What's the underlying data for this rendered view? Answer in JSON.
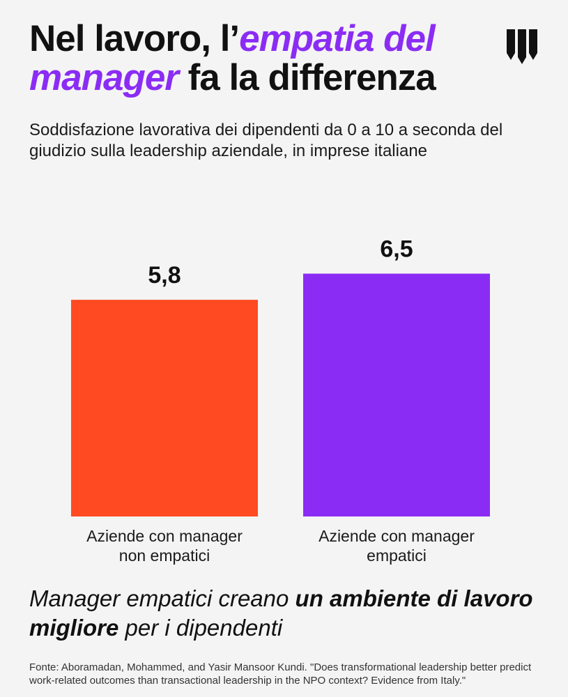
{
  "header": {
    "title_part1": "Nel lavoro, l’",
    "title_accent": "empatia del manager",
    "title_part2": " fa la differenza",
    "subtitle": "Soddisfazione lavorativa dei dipendenti da 0 a 10 a seconda del giudizio sulla leadership aziendale, in imprese italiane",
    "logo_icon": "brand-logo-icon"
  },
  "chart_data": {
    "type": "bar",
    "title": "",
    "xlabel": "",
    "ylabel": "",
    "categories": [
      [
        "Aziende con manager",
        "non empatici"
      ],
      [
        "Aziende con manager",
        "empatici"
      ]
    ],
    "values": [
      5.8,
      6.5
    ],
    "value_labels": [
      "5,8",
      "6,5"
    ],
    "colors": [
      "#ff4a22",
      "#8b2cf5"
    ],
    "grid": false,
    "legend": "none"
  },
  "tagline": {
    "part1": "Manager empatici creano ",
    "strong": "un ambiente di lavoro migliore",
    "part2": " per i dipendenti"
  },
  "source": "Fonte: Aboramadan, Mohammed, and Yasir Mansoor Kundi. \"Does transformational leadership better predict work-related outcomes than transactional leadership in the NPO context? Evidence from Italy.\"",
  "colors": {
    "accent": "#8b2cf5",
    "background": "#f4f4f4"
  }
}
